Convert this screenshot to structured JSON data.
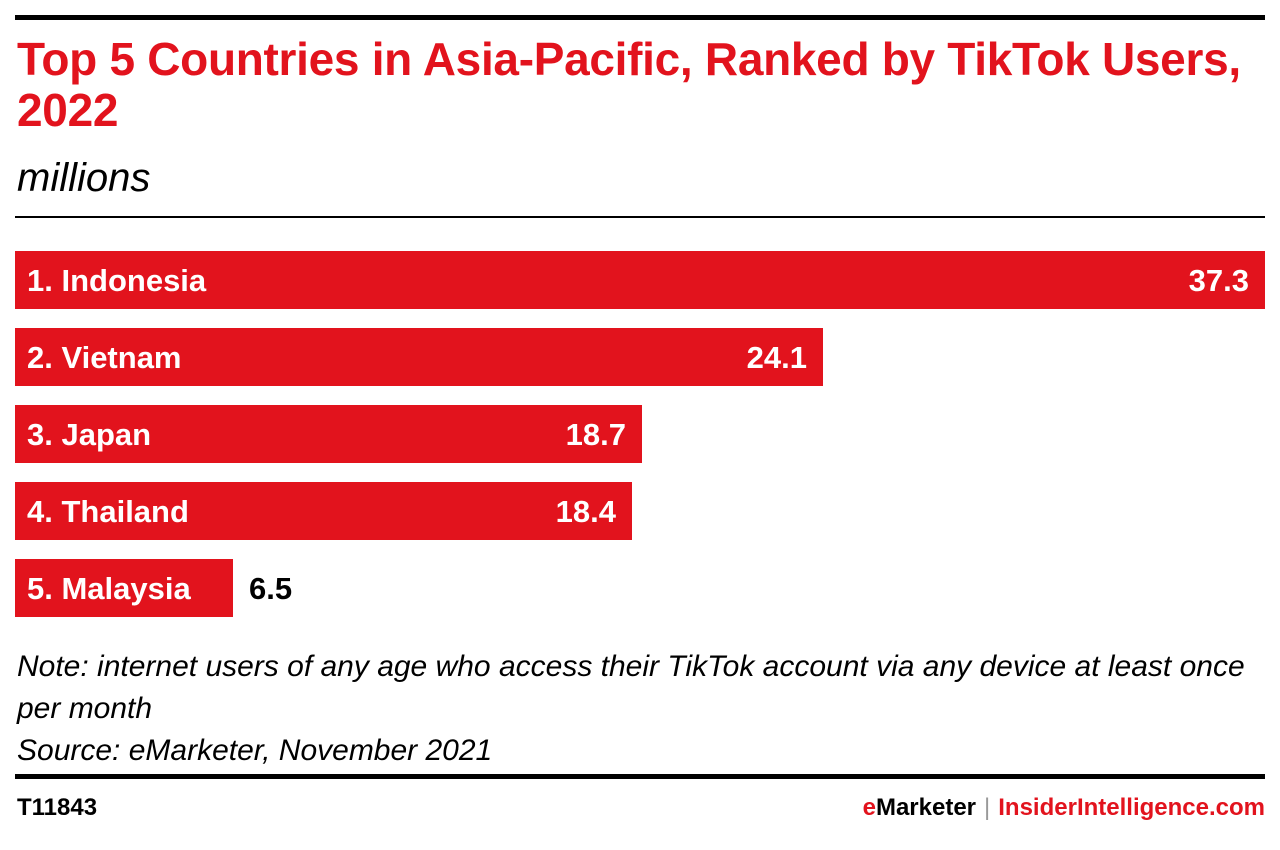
{
  "colors": {
    "accent": "#e2131d",
    "text": "#000000",
    "bar_label": "#ffffff",
    "separator": "#999999"
  },
  "header": {
    "title": "Top 5 Countries in Asia-Pacific, Ranked by TikTok Users, 2022",
    "subtitle": "millions"
  },
  "chart_data": {
    "type": "bar",
    "orientation": "horizontal",
    "title": "Top 5 Countries in Asia-Pacific, Ranked by TikTok Users, 2022",
    "subtitle": "millions",
    "categories": [
      "1. Indonesia",
      "2. Vietnam",
      "3. Japan",
      "4. Thailand",
      "5. Malaysia"
    ],
    "values": [
      37.3,
      24.1,
      18.7,
      18.4,
      6.5
    ],
    "value_labels": [
      "37.3",
      "24.1",
      "18.7",
      "18.4",
      "6.5"
    ],
    "xlim": [
      0,
      37.3
    ],
    "grid": false,
    "legend": "none"
  },
  "footer": {
    "note_line1": "Note: internet users of any age who access their TikTok account via any device at least once per month",
    "source": "Source: eMarketer, November 2021",
    "chart_id": "T11843",
    "brand_emarketer_e": "e",
    "brand_emarketer_rest": "Marketer",
    "brand_separator": "|",
    "brand_insider": "InsiderIntelligence.com"
  }
}
